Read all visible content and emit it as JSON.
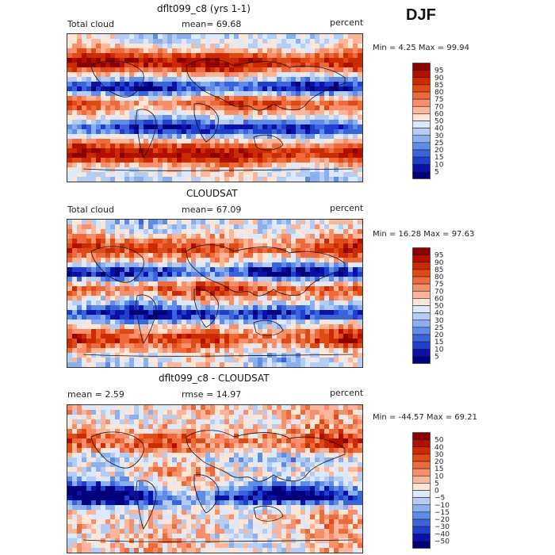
{
  "season": "DJF",
  "panels": [
    {
      "title": "dflt099_c8 (yrs 1-1)",
      "left_label": "Total cloud",
      "mid_label": "mean=  69.68",
      "right_label": "percent",
      "minmax": "Min =   4.25 Max =  99.94",
      "levels": [
        "95",
        "90",
        "85",
        "80",
        "75",
        "70",
        "60",
        "50",
        "40",
        "30",
        "25",
        "20",
        "15",
        "10",
        "5"
      ],
      "colors": [
        "#8c0000",
        "#b30f00",
        "#cc2a00",
        "#e04a14",
        "#ee6a3a",
        "#f68f6a",
        "#fbb69a",
        "#fde6d8",
        "#dce9fb",
        "#b3cdf5",
        "#8bb0ef",
        "#5f8ce8",
        "#3a63dc",
        "#1f3fcf",
        "#0a10a8",
        "#00007a"
      ],
      "pattern": "model"
    },
    {
      "title": "CLOUDSAT",
      "left_label": "Total cloud",
      "mid_label": "mean=  67.09",
      "right_label": "percent",
      "minmax": "Min =  16.28 Max =  97.63",
      "levels": [
        "95",
        "90",
        "85",
        "80",
        "75",
        "70",
        "60",
        "50",
        "40",
        "30",
        "25",
        "20",
        "15",
        "10",
        "5"
      ],
      "colors": [
        "#8c0000",
        "#b30f00",
        "#cc2a00",
        "#e04a14",
        "#ee6a3a",
        "#f68f6a",
        "#fbb69a",
        "#fde6d8",
        "#dce9fb",
        "#b3cdf5",
        "#8bb0ef",
        "#5f8ce8",
        "#3a63dc",
        "#1f3fcf",
        "#0a10a8",
        "#00007a"
      ],
      "pattern": "obs"
    },
    {
      "title": "dflt099_c8 - CLOUDSAT",
      "left_label": "mean =    2.59",
      "mid_label": "rmse =  14.97",
      "right_label": "percent",
      "minmax": "Min = -44.57 Max =  69.21",
      "levels": [
        "50",
        "40",
        "30",
        "20",
        "15",
        "10",
        "5",
        "0",
        "−5",
        "−10",
        "−15",
        "−20",
        "−30",
        "−40",
        "−50"
      ],
      "colors": [
        "#8c0000",
        "#b30f00",
        "#cc2a00",
        "#e04a14",
        "#ee6a3a",
        "#f68f6a",
        "#fbb69a",
        "#fde6d8",
        "#dce9fb",
        "#b3cdf5",
        "#8bb0ef",
        "#5f8ce8",
        "#3a63dc",
        "#1f3fcf",
        "#0a10a8",
        "#00007a"
      ],
      "pattern": "diff"
    }
  ],
  "chart_data": {
    "type": "heatmap",
    "title": "DJF",
    "panels": [
      {
        "name": "dflt099_c8 (yrs 1-1)",
        "variable": "Total cloud",
        "units": "percent",
        "mean": 69.68,
        "min": 4.25,
        "max": 99.94
      },
      {
        "name": "CLOUDSAT",
        "variable": "Total cloud",
        "units": "percent",
        "mean": 67.09,
        "min": 16.28,
        "max": 97.63
      },
      {
        "name": "dflt099_c8 - CLOUDSAT",
        "units": "percent",
        "mean": 2.59,
        "rmse": 14.97,
        "min": -44.57,
        "max": 69.21
      }
    ]
  }
}
